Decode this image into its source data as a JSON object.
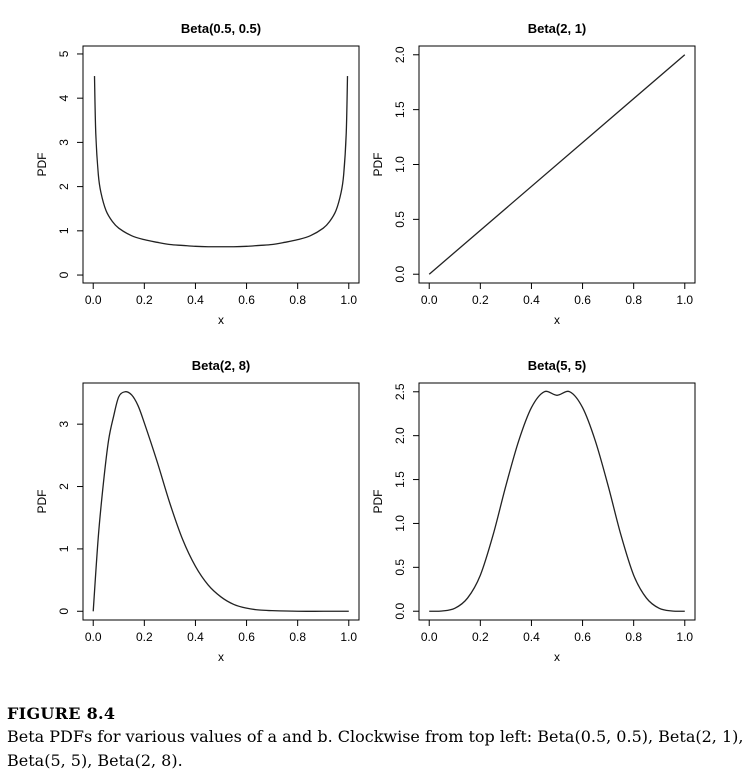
{
  "chart_data": [
    {
      "type": "line",
      "title": "Beta(0.5, 0.5)",
      "xlabel": "x",
      "ylabel": "PDF",
      "xlim": [
        0,
        1
      ],
      "ylim": [
        0,
        5
      ],
      "xticks": [
        "0.0",
        "0.2",
        "0.4",
        "0.6",
        "0.8",
        "1.0"
      ],
      "yticks": [
        "0",
        "1",
        "2",
        "3",
        "4",
        "5"
      ],
      "series": [
        {
          "x": [
            0.005,
            0.01,
            0.02,
            0.03,
            0.05,
            0.075,
            0.1,
            0.15,
            0.2,
            0.25,
            0.3,
            0.35,
            0.4,
            0.45,
            0.5,
            0.55,
            0.6,
            0.65,
            0.7,
            0.75,
            0.8,
            0.85,
            0.9,
            0.925,
            0.95,
            0.97,
            0.98,
            0.99,
            0.995
          ],
          "y": [
            4.5,
            3.2,
            2.27,
            1.87,
            1.46,
            1.21,
            1.06,
            0.89,
            0.8,
            0.74,
            0.69,
            0.67,
            0.65,
            0.64,
            0.64,
            0.64,
            0.65,
            0.67,
            0.69,
            0.74,
            0.8,
            0.89,
            1.06,
            1.21,
            1.46,
            1.87,
            2.27,
            3.2,
            4.5
          ]
        }
      ]
    },
    {
      "type": "line",
      "title": "Beta(2, 1)",
      "xlabel": "x",
      "ylabel": "PDF",
      "xlim": [
        0,
        1
      ],
      "ylim": [
        0,
        2
      ],
      "xticks": [
        "0.0",
        "0.2",
        "0.4",
        "0.6",
        "0.8",
        "1.0"
      ],
      "yticks": [
        "0.0",
        "0.5",
        "1.0",
        "1.5",
        "2.0"
      ],
      "series": [
        {
          "x": [
            0,
            1
          ],
          "y": [
            0,
            2
          ]
        }
      ]
    },
    {
      "type": "line",
      "title": "Beta(2, 8)",
      "xlabel": "x",
      "ylabel": "PDF",
      "xlim": [
        0,
        1
      ],
      "ylim": [
        0,
        3.5
      ],
      "xticks": [
        "0.0",
        "0.2",
        "0.4",
        "0.6",
        "0.8",
        "1.0"
      ],
      "yticks": [
        "0",
        "1",
        "2",
        "3"
      ],
      "series": [
        {
          "x": [
            0,
            0.02,
            0.04,
            0.06,
            0.08,
            0.1,
            0.125,
            0.15,
            0.175,
            0.2,
            0.25,
            0.3,
            0.35,
            0.4,
            0.45,
            0.5,
            0.55,
            0.6,
            0.65,
            0.7,
            0.8,
            0.9,
            1.0
          ],
          "y": [
            0,
            1.2,
            2.06,
            2.74,
            3.13,
            3.44,
            3.52,
            3.47,
            3.3,
            3.02,
            2.4,
            1.73,
            1.15,
            0.72,
            0.42,
            0.23,
            0.11,
            0.05,
            0.02,
            0.01,
            0,
            0,
            0
          ]
        }
      ]
    },
    {
      "type": "line",
      "title": "Beta(5, 5)",
      "xlabel": "x",
      "ylabel": "PDF",
      "xlim": [
        0,
        1
      ],
      "ylim": [
        0,
        2.5
      ],
      "xticks": [
        "0.0",
        "0.2",
        "0.4",
        "0.6",
        "0.8",
        "1.0"
      ],
      "yticks": [
        "0.0",
        "0.5",
        "1.0",
        "1.5",
        "2.0",
        "2.5"
      ],
      "series": [
        {
          "x": [
            0,
            0.05,
            0.1,
            0.15,
            0.2,
            0.25,
            0.3,
            0.35,
            0.4,
            0.45,
            0.5,
            0.55,
            0.6,
            0.65,
            0.7,
            0.75,
            0.8,
            0.85,
            0.9,
            0.95,
            1.0
          ],
          "y": [
            0,
            0.003,
            0.033,
            0.15,
            0.41,
            0.87,
            1.43,
            1.94,
            2.32,
            2.5,
            2.46,
            2.5,
            2.32,
            1.94,
            1.43,
            0.87,
            0.41,
            0.15,
            0.033,
            0.003,
            0
          ]
        }
      ]
    }
  ],
  "caption": {
    "label": "FIGURE 8.4",
    "text": "Beta PDFs for various values of a and b. Clockwise from top left: Beta(0.5, 0.5), Beta(2, 1), Beta(5, 5), Beta(2, 8)."
  }
}
